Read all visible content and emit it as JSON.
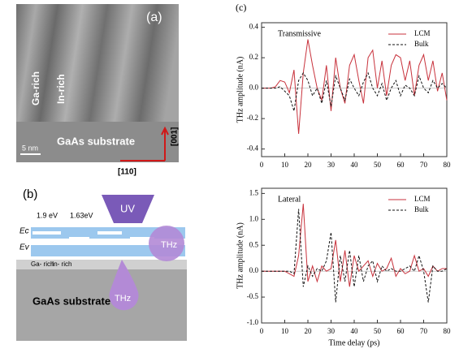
{
  "panel_a": {
    "label": "(a)",
    "ga_rich": "Ga-rich",
    "in_rich": "In-rich",
    "substrate": "GaAs substrate",
    "scale": "5 nm",
    "dir_vertical": "[001]",
    "dir_horizontal": "[110]"
  },
  "panel_b": {
    "label": "(b)",
    "gap_1": "1.9 eV",
    "gap_2": "1.63eV",
    "ec": "Ec",
    "ev": "Ev",
    "uv": "UV",
    "thz_right": "THz",
    "thz_down": "THz",
    "ga_rich": "Ga-\nrich",
    "in_rich": "In-\nrich",
    "substrate": "GaAs substrate"
  },
  "panel_c_label": "(c)",
  "chart_data": [
    {
      "type": "line",
      "annotation": "Transmissive",
      "y_label": "THz amplitude (nA)",
      "x": [
        0,
        2,
        4,
        6,
        8,
        10,
        12,
        14,
        16,
        18,
        20,
        22,
        24,
        26,
        28,
        30,
        32,
        34,
        36,
        38,
        40,
        42,
        44,
        46,
        48,
        50,
        52,
        54,
        56,
        58,
        60,
        62,
        64,
        66,
        68,
        70,
        72,
        74,
        76,
        78,
        80
      ],
      "series": [
        {
          "name": "LCM",
          "color": "#c8323c",
          "dash": false,
          "values": [
            0,
            0,
            0,
            0.01,
            0.05,
            0.04,
            -0.03,
            0.12,
            -0.3,
            0.1,
            0.32,
            0.15,
            0.0,
            -0.08,
            0.15,
            -0.15,
            0.2,
            0.0,
            -0.1,
            0.15,
            0.22,
            0.05,
            -0.1,
            0.2,
            0.25,
            0.0,
            0.18,
            -0.05,
            0.15,
            0.22,
            0.2,
            0.05,
            0.18,
            -0.05,
            0.15,
            0.22,
            0.05,
            0.18,
            -0.02,
            0.1,
            -0.08
          ]
        },
        {
          "name": "Bulk",
          "color": "#111111",
          "dash": true,
          "values": [
            0,
            0,
            0,
            0,
            0.01,
            -0.02,
            -0.05,
            -0.15,
            0.05,
            0.1,
            0.05,
            -0.05,
            0,
            -0.1,
            0.05,
            -0.12,
            0.08,
            0,
            -0.08,
            0.06,
            0,
            -0.05,
            0.04,
            0.1,
            0,
            -0.05,
            0.03,
            -0.08,
            0,
            0.05,
            -0.05,
            0.02,
            0,
            -0.05,
            0.08,
            0,
            -0.03,
            0.05,
            0,
            0.03,
            0
          ]
        }
      ],
      "xlim": [
        0,
        80
      ],
      "xticks": [
        0,
        10,
        20,
        30,
        40,
        50,
        60,
        70,
        80
      ],
      "ylim": [
        -0.45,
        0.43
      ],
      "yticks": [
        -0.4,
        -0.2,
        {
          "value": 0,
          "label": "0.0"
        },
        0.2,
        0.4
      ]
    },
    {
      "type": "line",
      "annotation": "Lateral",
      "y_label": "THz amplitude (nA)",
      "x_label": "Time delay (ps)",
      "x": [
        0,
        2,
        4,
        6,
        8,
        10,
        12,
        14,
        16,
        18,
        20,
        22,
        24,
        26,
        28,
        30,
        32,
        34,
        36,
        38,
        40,
        42,
        44,
        46,
        48,
        50,
        52,
        54,
        56,
        58,
        60,
        62,
        64,
        66,
        68,
        70,
        72,
        74,
        76,
        78,
        80
      ],
      "series": [
        {
          "name": "LCM",
          "color": "#c8323c",
          "dash": false,
          "values": [
            0,
            0,
            0,
            0,
            0,
            0,
            -0.05,
            -0.1,
            0.3,
            1.3,
            -0.2,
            0.1,
            -0.2,
            0.1,
            0,
            0.05,
            0.6,
            -0.2,
            0.4,
            -0.3,
            0.3,
            0,
            0.1,
            0.2,
            -0.1,
            0.15,
            0,
            0.05,
            0.25,
            -0.1,
            0.05,
            -0.05,
            0,
            0.3,
            0,
            0.05,
            -0.1,
            0.1,
            0,
            0.05,
            0.05
          ]
        },
        {
          "name": "Bulk",
          "color": "#111111",
          "dash": true,
          "values": [
            0,
            0,
            0,
            0,
            0,
            0,
            0,
            -0.05,
            1.2,
            -0.3,
            0.1,
            -0.1,
            0.05,
            0,
            0.2,
            0.75,
            -0.6,
            0.3,
            -0.2,
            0.4,
            -0.3,
            0.3,
            -0.2,
            0.1,
            0.2,
            -0.2,
            0.1,
            0,
            0.05,
            0,
            0,
            0.05,
            0.1,
            0,
            0.3,
            0,
            -0.6,
            0.1,
            0,
            0,
            0.05
          ]
        }
      ],
      "xlim": [
        0,
        80
      ],
      "xticks": [
        0,
        10,
        20,
        30,
        40,
        50,
        60,
        70,
        80
      ],
      "ylim": [
        -1.0,
        1.6
      ],
      "yticks": [
        {
          "value": -1,
          "label": "-1.0"
        },
        -0.5,
        {
          "value": 0,
          "label": "0.0"
        },
        0.5,
        {
          "value": 1,
          "label": "1.0"
        },
        1.5
      ]
    }
  ]
}
